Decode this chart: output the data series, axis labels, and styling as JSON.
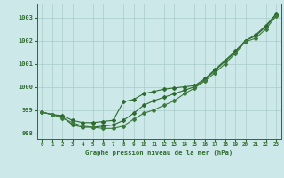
{
  "xlabel": "Graphe pression niveau de la mer (hPa)",
  "hours": [
    0,
    1,
    2,
    3,
    4,
    5,
    6,
    7,
    8,
    9,
    10,
    11,
    12,
    13,
    14,
    15,
    16,
    17,
    18,
    19,
    20,
    21,
    22,
    23
  ],
  "line1": [
    998.9,
    998.8,
    998.75,
    998.55,
    998.45,
    998.45,
    998.5,
    998.55,
    999.35,
    999.45,
    999.7,
    999.8,
    999.9,
    999.95,
    1000.0,
    1000.05,
    1000.35,
    1000.75,
    1001.15,
    1001.55,
    1002.0,
    1002.25,
    1002.65,
    1003.15
  ],
  "line2": [
    998.9,
    998.8,
    998.7,
    998.35,
    998.25,
    998.25,
    998.3,
    998.35,
    998.55,
    998.85,
    999.2,
    999.4,
    999.55,
    999.7,
    999.85,
    1000.0,
    1000.3,
    1000.7,
    1001.1,
    1001.5,
    1002.0,
    1002.2,
    1002.6,
    1003.1
  ],
  "line3": [
    998.9,
    998.8,
    998.65,
    998.45,
    998.3,
    998.25,
    998.2,
    998.2,
    998.3,
    998.6,
    998.85,
    999.0,
    999.2,
    999.4,
    999.7,
    999.95,
    1000.25,
    1000.6,
    1001.0,
    1001.45,
    1001.95,
    1002.1,
    1002.5,
    1003.05
  ],
  "line_color1": "#2d6a2d",
  "line_color2": "#2d6a2d",
  "line_color3": "#3d7a3d",
  "bg_color": "#cce8e8",
  "grid_color": "#aacccc",
  "text_color": "#2d6a2d",
  "ylim_min": 997.75,
  "ylim_max": 1003.6,
  "yticks": [
    998,
    999,
    1000,
    1001,
    1002,
    1003
  ],
  "marker": "D",
  "marker_size": 2.0,
  "lw": 0.8
}
